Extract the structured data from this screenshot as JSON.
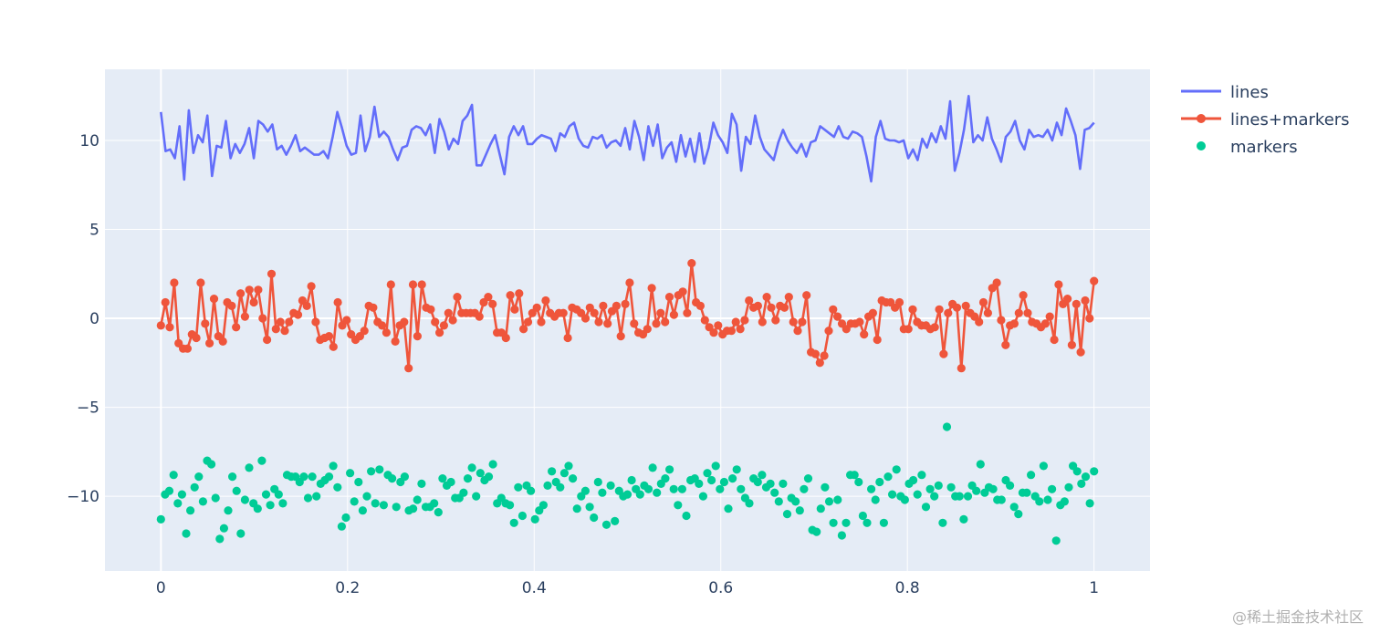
{
  "chart_data": {
    "type": "scatter",
    "title": "",
    "xlabel": "",
    "ylabel": "",
    "xlim": [
      -0.06,
      1.06
    ],
    "ylim": [
      -14.2,
      14.0
    ],
    "x_ticks": [
      {
        "value": 0,
        "label": "0"
      },
      {
        "value": 0.2,
        "label": "0.2"
      },
      {
        "value": 0.4,
        "label": "0.4"
      },
      {
        "value": 0.6,
        "label": "0.6"
      },
      {
        "value": 0.8,
        "label": "0.8"
      },
      {
        "value": 1,
        "label": "1"
      }
    ],
    "y_ticks": [
      {
        "value": 10,
        "label": "10"
      },
      {
        "value": 5,
        "label": "5"
      },
      {
        "value": 0,
        "label": "0"
      },
      {
        "value": -5,
        "label": "−5"
      },
      {
        "value": -10,
        "label": "−10"
      }
    ],
    "grid": true,
    "legend_position": "top-right",
    "background": "#e5ecf6",
    "x_range_start": 0,
    "x_range_end": 1,
    "series": [
      {
        "name": "lines",
        "mode": "lines",
        "color": "#636efa",
        "values": [
          11.6,
          9.4,
          9.5,
          9.0,
          10.8,
          7.8,
          11.7,
          9.3,
          10.3,
          9.9,
          11.4,
          8.0,
          9.7,
          9.6,
          11.1,
          9.0,
          9.8,
          9.3,
          9.8,
          10.7,
          9.0,
          11.1,
          10.9,
          10.5,
          10.9,
          9.5,
          9.7,
          9.2,
          9.7,
          10.3,
          9.4,
          9.6,
          9.4,
          9.2,
          9.2,
          9.4,
          9.0,
          10.2,
          11.6,
          10.7,
          9.7,
          9.2,
          9.3,
          11.4,
          9.4,
          10.2,
          11.9,
          10.2,
          10.5,
          10.2,
          9.5,
          8.9,
          9.6,
          9.7,
          10.6,
          10.8,
          10.7,
          10.3,
          10.9,
          9.3,
          11.2,
          10.5,
          9.5,
          10.1,
          9.8,
          11.1,
          11.4,
          12.0,
          8.6,
          8.6,
          9.2,
          9.8,
          10.3,
          9.2,
          8.1,
          10.2,
          10.8,
          10.3,
          10.8,
          9.8,
          9.8,
          10.1,
          10.3,
          10.2,
          10.1,
          9.4,
          10.4,
          10.2,
          10.8,
          11.0,
          10.1,
          9.7,
          9.6,
          10.2,
          10.1,
          10.3,
          9.6,
          9.9,
          10.0,
          9.7,
          10.7,
          9.5,
          11.1,
          10.2,
          8.9,
          10.8,
          9.7,
          10.9,
          9.0,
          9.6,
          9.9,
          8.8,
          10.3,
          9.1,
          10.1,
          8.8,
          10.4,
          8.7,
          9.6,
          11.0,
          10.3,
          9.9,
          9.3,
          11.5,
          10.9,
          8.3,
          10.2,
          9.8,
          11.4,
          10.2,
          9.5,
          9.2,
          8.9,
          9.9,
          10.6,
          10.0,
          9.6,
          9.3,
          9.8,
          9.1,
          9.9,
          10.0,
          10.8,
          10.6,
          10.4,
          10.2,
          10.8,
          10.2,
          10.1,
          10.5,
          10.4,
          10.2,
          9.1,
          7.7,
          10.2,
          11.1,
          10.1,
          10.0,
          10.0,
          9.9,
          10.0,
          9.0,
          9.5,
          8.9,
          10.1,
          9.6,
          10.4,
          9.9,
          10.8,
          10.1,
          12.2,
          8.3,
          9.3,
          10.6,
          12.5,
          9.9,
          10.3,
          10.0,
          11.3,
          10.1,
          9.5,
          8.8,
          10.2,
          10.5,
          11.1,
          10.0,
          9.5,
          10.6,
          10.2,
          10.3,
          10.2,
          10.6,
          10.0,
          11.0,
          10.3,
          11.8,
          11.1,
          10.3,
          8.4,
          10.6,
          10.7,
          11.0
        ]
      },
      {
        "name": "lines+markers",
        "mode": "lines+markers",
        "color": "#ef553b",
        "values": [
          -0.4,
          0.9,
          -0.5,
          2.0,
          -1.4,
          -1.7,
          -1.7,
          -0.9,
          -1.1,
          2.0,
          -0.3,
          -1.4,
          1.1,
          -1.0,
          -1.3,
          0.9,
          0.7,
          -0.5,
          1.4,
          0.1,
          1.6,
          0.9,
          1.6,
          0.0,
          -1.2,
          2.5,
          -0.6,
          -0.2,
          -0.7,
          -0.2,
          0.3,
          0.2,
          1.0,
          0.7,
          1.8,
          -0.2,
          -1.2,
          -1.1,
          -1.0,
          -1.6,
          0.9,
          -0.4,
          -0.1,
          -0.9,
          -1.2,
          -1.0,
          -0.7,
          0.7,
          0.6,
          -0.2,
          -0.4,
          -0.8,
          1.9,
          -1.3,
          -0.4,
          -0.2,
          -2.8,
          1.9,
          -1.0,
          1.9,
          0.6,
          0.5,
          -0.2,
          -0.8,
          -0.4,
          0.3,
          -0.1,
          1.2,
          0.3,
          0.3,
          0.3,
          0.3,
          0.1,
          0.9,
          1.2,
          0.8,
          -0.8,
          -0.8,
          -1.1,
          1.3,
          0.5,
          1.4,
          -0.6,
          -0.2,
          0.3,
          0.6,
          -0.2,
          1.0,
          0.3,
          0.1,
          0.3,
          0.3,
          -1.1,
          0.6,
          0.5,
          0.3,
          0.0,
          0.6,
          0.3,
          -0.2,
          0.7,
          -0.3,
          0.4,
          0.7,
          -1.0,
          0.8,
          2.0,
          -0.3,
          -0.8,
          -0.9,
          -0.6,
          1.7,
          -0.3,
          0.3,
          -0.2,
          1.2,
          0.2,
          1.3,
          1.5,
          0.3,
          3.1,
          0.9,
          0.7,
          -0.1,
          -0.5,
          -0.8,
          -0.4,
          -0.9,
          -0.7,
          -0.7,
          -0.2,
          -0.6,
          -0.1,
          1.0,
          0.6,
          0.7,
          -0.2,
          1.2,
          0.6,
          -0.1,
          0.7,
          0.6,
          1.2,
          -0.2,
          -0.7,
          -0.2,
          1.3,
          -1.9,
          -2.0,
          -2.5,
          -2.1,
          -0.7,
          0.5,
          0.1,
          -0.3,
          -0.6,
          -0.3,
          -0.3,
          -0.2,
          -0.9,
          0.1,
          0.3,
          -1.2,
          1.0,
          0.9,
          0.9,
          0.6,
          0.9,
          -0.6,
          -0.6,
          0.5,
          -0.2,
          -0.4,
          -0.4,
          -0.6,
          -0.5,
          0.5,
          -2.0,
          0.3,
          0.8,
          0.6,
          -2.8,
          0.7,
          0.3,
          0.1,
          -0.2,
          0.9,
          0.3,
          1.7,
          2.0,
          -0.1,
          -1.5,
          -0.4,
          -0.3,
          0.3,
          1.3,
          0.3,
          -0.2,
          -0.3,
          -0.5,
          -0.3,
          0.1,
          -1.2,
          1.9,
          0.8,
          1.1,
          -1.5,
          0.8,
          -1.9,
          1.0,
          0.0,
          2.1
        ]
      },
      {
        "name": "markers",
        "mode": "markers",
        "color": "#00cc96",
        "values": [
          -11.3,
          -9.9,
          -9.7,
          -8.8,
          -10.4,
          -9.9,
          -12.1,
          -10.8,
          -9.5,
          -8.9,
          -10.3,
          -8.0,
          -8.2,
          -10.1,
          -12.4,
          -11.8,
          -10.8,
          -8.9,
          -9.7,
          -12.1,
          -10.2,
          -8.4,
          -10.4,
          -10.7,
          -8.0,
          -9.9,
          -10.5,
          -9.6,
          -9.9,
          -10.4,
          -8.8,
          -8.9,
          -8.9,
          -9.2,
          -8.9,
          -10.1,
          -8.9,
          -10.0,
          -9.3,
          -9.1,
          -8.9,
          -8.3,
          -9.5,
          -11.7,
          -11.2,
          -8.7,
          -10.3,
          -9.2,
          -10.8,
          -10.0,
          -8.6,
          -10.4,
          -8.5,
          -10.5,
          -8.8,
          -9.0,
          -10.6,
          -9.2,
          -8.9,
          -10.8,
          -10.7,
          -10.2,
          -9.3,
          -10.6,
          -10.6,
          -10.4,
          -10.9,
          -9.0,
          -9.4,
          -9.2,
          -10.1,
          -10.1,
          -9.8,
          -9.0,
          -8.4,
          -10.0,
          -8.7,
          -9.1,
          -8.9,
          -8.2,
          -10.4,
          -10.1,
          -10.4,
          -10.5,
          -11.5,
          -9.5,
          -11.1,
          -9.4,
          -9.7,
          -11.3,
          -10.8,
          -10.5,
          -9.4,
          -8.6,
          -9.2,
          -9.5,
          -8.7,
          -8.3,
          -9.0,
          -10.7,
          -10.0,
          -9.7,
          -10.6,
          -11.2,
          -9.2,
          -9.8,
          -11.6,
          -9.4,
          -11.4,
          -9.7,
          -10.0,
          -9.9,
          -9.1,
          -9.6,
          -9.9,
          -9.4,
          -9.6,
          -8.4,
          -9.8,
          -9.3,
          -9.0,
          -8.5,
          -9.6,
          -10.5,
          -9.6,
          -11.1,
          -9.1,
          -9.0,
          -9.3,
          -10.0,
          -8.7,
          -9.1,
          -8.3,
          -9.6,
          -9.2,
          -10.7,
          -9.0,
          -8.5,
          -9.6,
          -10.1,
          -10.4,
          -9.0,
          -9.2,
          -8.8,
          -9.5,
          -9.3,
          -9.8,
          -10.3,
          -9.3,
          -11.0,
          -10.1,
          -10.3,
          -10.8,
          -9.6,
          -9.0,
          -11.9,
          -12.0,
          -10.7,
          -9.5,
          -10.3,
          -11.5,
          -10.2,
          -12.2,
          -11.5,
          -8.8,
          -8.8,
          -9.2,
          -11.1,
          -11.5,
          -9.6,
          -10.2,
          -9.2,
          -11.5,
          -8.9,
          -9.9,
          -8.5,
          -10.0,
          -10.2,
          -9.3,
          -9.1,
          -9.9,
          -8.8,
          -10.6,
          -9.6,
          -10.0,
          -9.4,
          -11.5,
          -6.1,
          -9.5,
          -10.0,
          -10.0,
          -11.3,
          -10.0,
          -9.4,
          -9.7,
          -8.2,
          -9.8,
          -9.5,
          -9.6,
          -10.2,
          -10.2,
          -9.1,
          -9.4,
          -10.6,
          -11.0,
          -9.8,
          -9.8,
          -8.8,
          -10.0,
          -10.3,
          -8.3,
          -10.2,
          -9.6,
          -12.5,
          -10.5,
          -10.3,
          -9.5,
          -8.3,
          -8.6,
          -9.3,
          -8.9,
          -10.4,
          -8.6
        ]
      }
    ]
  },
  "watermark": "@稀土掘金技术社区"
}
